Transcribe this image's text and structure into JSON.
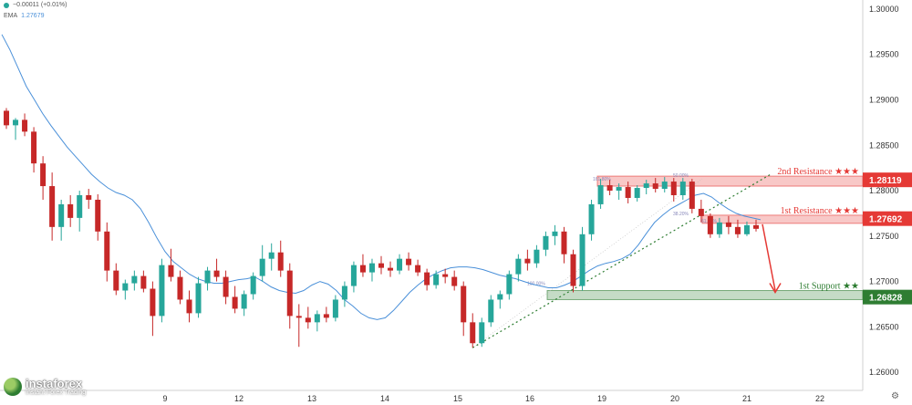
{
  "header": {
    "change": "−0.00011 (+0.01%)",
    "ema_label": "EMA",
    "ema_value": "1.27679"
  },
  "logo": {
    "brand": "instaforex",
    "tagline": "Instant Forex Trading"
  },
  "colors": {
    "up": "#26a69a",
    "down": "#c62828",
    "ema": "#4a90d9",
    "resistance": "#e53935",
    "support": "#2e7d32"
  },
  "chart_data": {
    "type": "candlestick",
    "yaxis": {
      "ticks": [
        "1.30000",
        "1.29500",
        "1.29000",
        "1.28500",
        "1.28000",
        "1.27500",
        "1.27000",
        "1.26500",
        "1.26000"
      ],
      "ylim": [
        1.258,
        1.301
      ]
    },
    "xaxis": {
      "ticks": [
        "9",
        "12",
        "13",
        "14",
        "15",
        "16",
        "19",
        "20",
        "21",
        "22"
      ]
    },
    "price_labels": [
      {
        "label": "1.28119",
        "value": 1.28119,
        "color": "#e53935"
      },
      {
        "label": "1.27692",
        "value": 1.27692,
        "color": "#e53935"
      },
      {
        "label": "1.26828",
        "value": 1.26828,
        "color": "#2e7d32"
      }
    ],
    "zones": [
      {
        "name": "2nd Resistance ★★★",
        "y_from": 1.2805,
        "y_to": 1.2816,
        "color": "#e53935"
      },
      {
        "name": "1st Resistance ★★★",
        "y_from": 1.2764,
        "y_to": 1.2773,
        "color": "#e53935"
      },
      {
        "name": "1st Support ★★",
        "y_from": 1.268,
        "y_to": 1.269,
        "color": "#2e7d32"
      }
    ],
    "fib_labels": [
      "161.80%",
      "50.00%",
      "38.20%",
      "61.80%",
      "100.00%"
    ],
    "ema": [
      1.2972,
      1.2955,
      1.2935,
      1.2915,
      1.29,
      1.2885,
      1.2872,
      1.286,
      1.2848,
      1.2838,
      1.2828,
      1.2818,
      1.281,
      1.2803,
      1.2798,
      1.2795,
      1.279,
      1.278,
      1.2765,
      1.2748,
      1.2733,
      1.2722,
      1.2715,
      1.2708,
      1.2703,
      1.27,
      1.2698,
      1.2698,
      1.27,
      1.2702,
      1.2703,
      1.2705,
      1.27,
      1.2694,
      1.269,
      1.2688,
      1.2687,
      1.269,
      1.2696,
      1.27,
      1.2697,
      1.269,
      1.268,
      1.2673,
      1.2665,
      1.266,
      1.2658,
      1.266,
      1.2668,
      1.2678,
      1.2688,
      1.2696,
      1.2703,
      1.2708,
      1.2712,
      1.2715,
      1.2716,
      1.2716,
      1.2715,
      1.2713,
      1.271,
      1.2707,
      1.2705,
      1.2703,
      1.27,
      1.2697,
      1.2695,
      1.2693,
      1.2693,
      1.2696,
      1.27,
      1.2706,
      1.2712,
      1.2717,
      1.272,
      1.2722,
      1.2725,
      1.273,
      1.274,
      1.2753,
      1.2765,
      1.2773,
      1.278,
      1.2785,
      1.279,
      1.2795,
      1.2797,
      1.2793,
      1.2786,
      1.278,
      1.2775,
      1.2772,
      1.277,
      1.2768
    ],
    "candles": [
      [
        1.2888,
        1.2891,
        1.2868,
        1.2872
      ],
      [
        1.2872,
        1.288,
        1.2856,
        1.2878
      ],
      [
        1.2878,
        1.2885,
        1.286,
        1.2865
      ],
      [
        1.2865,
        1.287,
        1.282,
        1.283
      ],
      [
        1.283,
        1.2838,
        1.279,
        1.2805
      ],
      [
        1.2805,
        1.282,
        1.2745,
        1.276
      ],
      [
        1.276,
        1.279,
        1.2745,
        1.2785
      ],
      [
        1.2785,
        1.2795,
        1.276,
        1.277
      ],
      [
        1.277,
        1.28,
        1.2755,
        1.2795
      ],
      [
        1.2795,
        1.2802,
        1.278,
        1.279
      ],
      [
        1.279,
        1.2796,
        1.2745,
        1.2755
      ],
      [
        1.2755,
        1.2765,
        1.27,
        1.2712
      ],
      [
        1.2712,
        1.272,
        1.2685,
        1.269
      ],
      [
        1.269,
        1.2702,
        1.268,
        1.2698
      ],
      [
        1.2698,
        1.2712,
        1.269,
        1.2706
      ],
      [
        1.2706,
        1.2712,
        1.2688,
        1.2692
      ],
      [
        1.2692,
        1.27,
        1.264,
        1.2662
      ],
      [
        1.2662,
        1.2725,
        1.2655,
        1.2718
      ],
      [
        1.2718,
        1.2736,
        1.27,
        1.2705
      ],
      [
        1.2705,
        1.2712,
        1.2675,
        1.268
      ],
      [
        1.268,
        1.269,
        1.2655,
        1.2665
      ],
      [
        1.2665,
        1.2705,
        1.266,
        1.2698
      ],
      [
        1.2698,
        1.2716,
        1.269,
        1.2712
      ],
      [
        1.2712,
        1.2725,
        1.27,
        1.2705
      ],
      [
        1.2705,
        1.2712,
        1.2675,
        1.2683
      ],
      [
        1.2683,
        1.2695,
        1.2665,
        1.267
      ],
      [
        1.267,
        1.269,
        1.2662,
        1.2686
      ],
      [
        1.2686,
        1.271,
        1.268,
        1.2706
      ],
      [
        1.2706,
        1.274,
        1.27,
        1.2725
      ],
      [
        1.2725,
        1.2742,
        1.2712,
        1.2732
      ],
      [
        1.2732,
        1.2745,
        1.2705,
        1.2712
      ],
      [
        1.2712,
        1.272,
        1.2648,
        1.2662
      ],
      [
        1.2662,
        1.2675,
        1.2628,
        1.266
      ],
      [
        1.266,
        1.2672,
        1.2648,
        1.2655
      ],
      [
        1.2655,
        1.2668,
        1.2645,
        1.2664
      ],
      [
        1.2664,
        1.2672,
        1.2655,
        1.266
      ],
      [
        1.266,
        1.2685,
        1.2656,
        1.268
      ],
      [
        1.268,
        1.27,
        1.2672,
        1.2695
      ],
      [
        1.2695,
        1.2722,
        1.2688,
        1.2718
      ],
      [
        1.2718,
        1.273,
        1.2705,
        1.271
      ],
      [
        1.271,
        1.2725,
        1.27,
        1.272
      ],
      [
        1.272,
        1.2728,
        1.2708,
        1.2715
      ],
      [
        1.2715,
        1.2722,
        1.2705,
        1.2712
      ],
      [
        1.2712,
        1.273,
        1.2708,
        1.2725
      ],
      [
        1.2725,
        1.2732,
        1.2712,
        1.2718
      ],
      [
        1.2718,
        1.2724,
        1.2706,
        1.271
      ],
      [
        1.271,
        1.2714,
        1.269,
        1.2696
      ],
      [
        1.2696,
        1.2712,
        1.2692,
        1.2708
      ],
      [
        1.2708,
        1.2714,
        1.2698,
        1.2705
      ],
      [
        1.2705,
        1.2712,
        1.269,
        1.2695
      ],
      [
        1.2695,
        1.27,
        1.264,
        1.2655
      ],
      [
        1.2655,
        1.2665,
        1.2627,
        1.2632
      ],
      [
        1.2632,
        1.266,
        1.2628,
        1.2655
      ],
      [
        1.2655,
        1.2685,
        1.265,
        1.268
      ],
      [
        1.268,
        1.269,
        1.267,
        1.2686
      ],
      [
        1.2686,
        1.2712,
        1.268,
        1.2708
      ],
      [
        1.2708,
        1.273,
        1.27,
        1.2725
      ],
      [
        1.2725,
        1.2735,
        1.2712,
        1.272
      ],
      [
        1.272,
        1.274,
        1.2715,
        1.2735
      ],
      [
        1.2735,
        1.2755,
        1.2728,
        1.275
      ],
      [
        1.275,
        1.2762,
        1.274,
        1.2755
      ],
      [
        1.2755,
        1.276,
        1.272,
        1.273
      ],
      [
        1.273,
        1.2735,
        1.2688,
        1.2695
      ],
      [
        1.2695,
        1.276,
        1.269,
        1.2752
      ],
      [
        1.2752,
        1.279,
        1.2745,
        1.2785
      ],
      [
        1.2785,
        1.2813,
        1.278,
        1.2806
      ],
      [
        1.2806,
        1.2812,
        1.2795,
        1.28
      ],
      [
        1.28,
        1.2808,
        1.279,
        1.2804
      ],
      [
        1.2804,
        1.281,
        1.2786,
        1.2792
      ],
      [
        1.2792,
        1.2806,
        1.2788,
        1.2803
      ],
      [
        1.2803,
        1.2812,
        1.2796,
        1.2808
      ],
      [
        1.2808,
        1.2814,
        1.2798,
        1.2802
      ],
      [
        1.2802,
        1.2815,
        1.2798,
        1.281
      ],
      [
        1.281,
        1.2814,
        1.2788,
        1.2795
      ],
      [
        1.2795,
        1.2814,
        1.279,
        1.281
      ],
      [
        1.281,
        1.2813,
        1.2775,
        1.278
      ],
      [
        1.278,
        1.279,
        1.2765,
        1.2772
      ],
      [
        1.2772,
        1.2775,
        1.2748,
        1.2752
      ],
      [
        1.2752,
        1.277,
        1.2748,
        1.2765
      ],
      [
        1.2765,
        1.2772,
        1.2752,
        1.276
      ],
      [
        1.276,
        1.2768,
        1.2748,
        1.2752
      ],
      [
        1.2752,
        1.2766,
        1.275,
        1.2762
      ],
      [
        1.2762,
        1.2768,
        1.2755,
        1.2758
      ]
    ]
  }
}
